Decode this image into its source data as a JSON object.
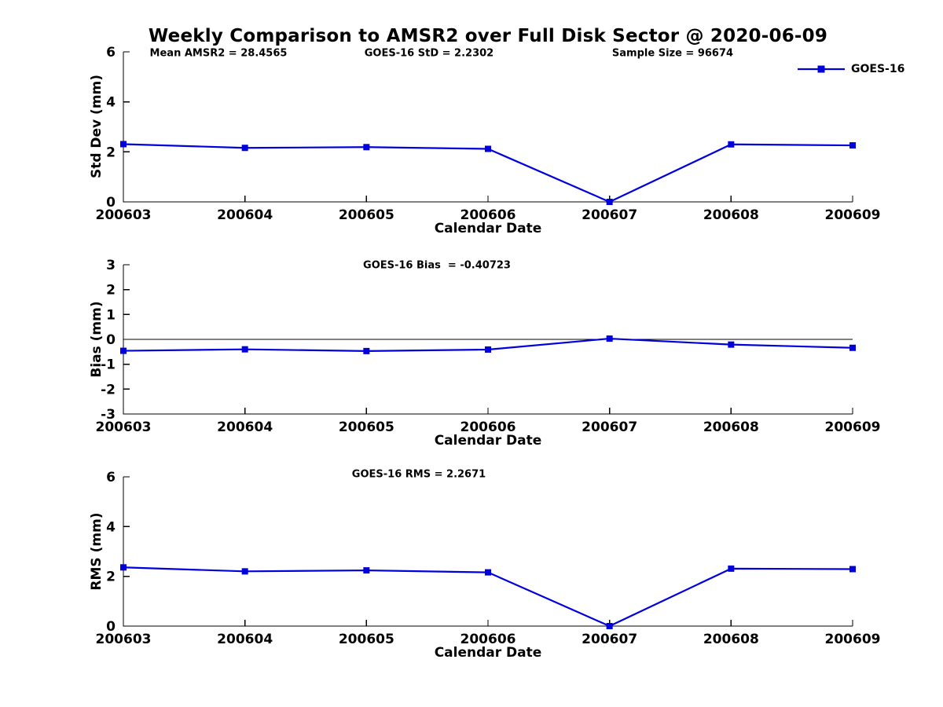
{
  "figure": {
    "title": "Weekly Comparison to AMSR2 over Full Disk Sector @ 2020-06-09",
    "legend_label": "GOES-16",
    "colors": {
      "line": "#0000DD",
      "axis": "#000000",
      "text": "#000000"
    }
  },
  "chart_data": [
    {
      "name": "stddev",
      "type": "line",
      "annotations": [
        "Mean AMSR2 = 28.4565",
        "GOES-16 StD = 2.2302",
        "Sample Size = 96674"
      ],
      "categories": [
        "200603",
        "200604",
        "200605",
        "200606",
        "200607",
        "200608",
        "200609"
      ],
      "series": [
        {
          "name": "GOES-16",
          "values": [
            2.31,
            2.16,
            2.19,
            2.12,
            0.0,
            2.3,
            2.26
          ]
        }
      ],
      "xlabel": "Calendar Date",
      "ylabel": "Std Dev (mm)",
      "ylim": [
        0,
        6
      ],
      "yticks": [
        0,
        2,
        4,
        6
      ],
      "grid": false,
      "legend_position": "top-right"
    },
    {
      "name": "bias",
      "type": "line",
      "annotations": [
        "GOES-16 Bias  = -0.40723"
      ],
      "categories": [
        "200603",
        "200604",
        "200605",
        "200606",
        "200607",
        "200608",
        "200609"
      ],
      "series": [
        {
          "name": "GOES-16",
          "values": [
            -0.46,
            -0.4,
            -0.47,
            -0.41,
            0.03,
            -0.21,
            -0.34
          ]
        }
      ],
      "xlabel": "Calendar Date",
      "ylabel": "Bias (mm)",
      "ylim": [
        -3,
        3
      ],
      "yticks": [
        -3,
        -2,
        -1,
        0,
        1,
        2,
        3
      ],
      "ref_line_y": 0,
      "grid": false
    },
    {
      "name": "rms",
      "type": "line",
      "annotations": [
        "GOES-16 RMS = 2.2671"
      ],
      "categories": [
        "200603",
        "200604",
        "200605",
        "200606",
        "200607",
        "200608",
        "200609"
      ],
      "series": [
        {
          "name": "GOES-16",
          "values": [
            2.36,
            2.2,
            2.24,
            2.16,
            0.0,
            2.31,
            2.29
          ]
        }
      ],
      "xlabel": "Calendar Date",
      "ylabel": "RMS (mm)",
      "ylim": [
        0,
        6
      ],
      "yticks": [
        0,
        2,
        4,
        6
      ],
      "grid": false
    }
  ]
}
